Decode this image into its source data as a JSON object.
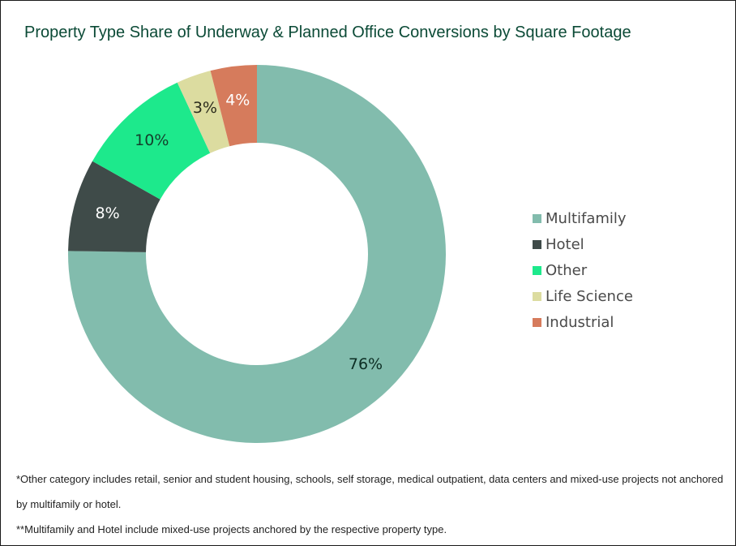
{
  "chart_data": {
    "type": "pie",
    "style": "donut",
    "title": "Property Type Share of Underway & Planned Office Conversions by Square Footage",
    "legend_position": "right",
    "slices": [
      {
        "name": "Multifamily",
        "value": 76,
        "label": "76%",
        "color": "#82bcad",
        "label_color": "#0d2e24"
      },
      {
        "name": "Hotel",
        "value": 8,
        "label": "8%",
        "color": "#3f4b49",
        "label_color": "#ffffff"
      },
      {
        "name": "Other",
        "value": 10,
        "label": "10%",
        "color": "#1de98c",
        "label_color": "#14402c"
      },
      {
        "name": "Life Science",
        "value": 3,
        "label": "3%",
        "color": "#dcdca0",
        "label_color": "#2b2b1c"
      },
      {
        "name": "Industrial",
        "value": 4,
        "label": "4%",
        "color": "#d67b5c",
        "label_color": "#ffffff"
      }
    ]
  },
  "footnotes": {
    "note1": "*Other category includes retail, senior and student housing, schools, self storage, medical outpatient, data centers and mixed-use projects not anchored by multifamily or hotel.",
    "note2": "**Multifamily and Hotel include mixed-use projects anchored by the respective property type."
  }
}
